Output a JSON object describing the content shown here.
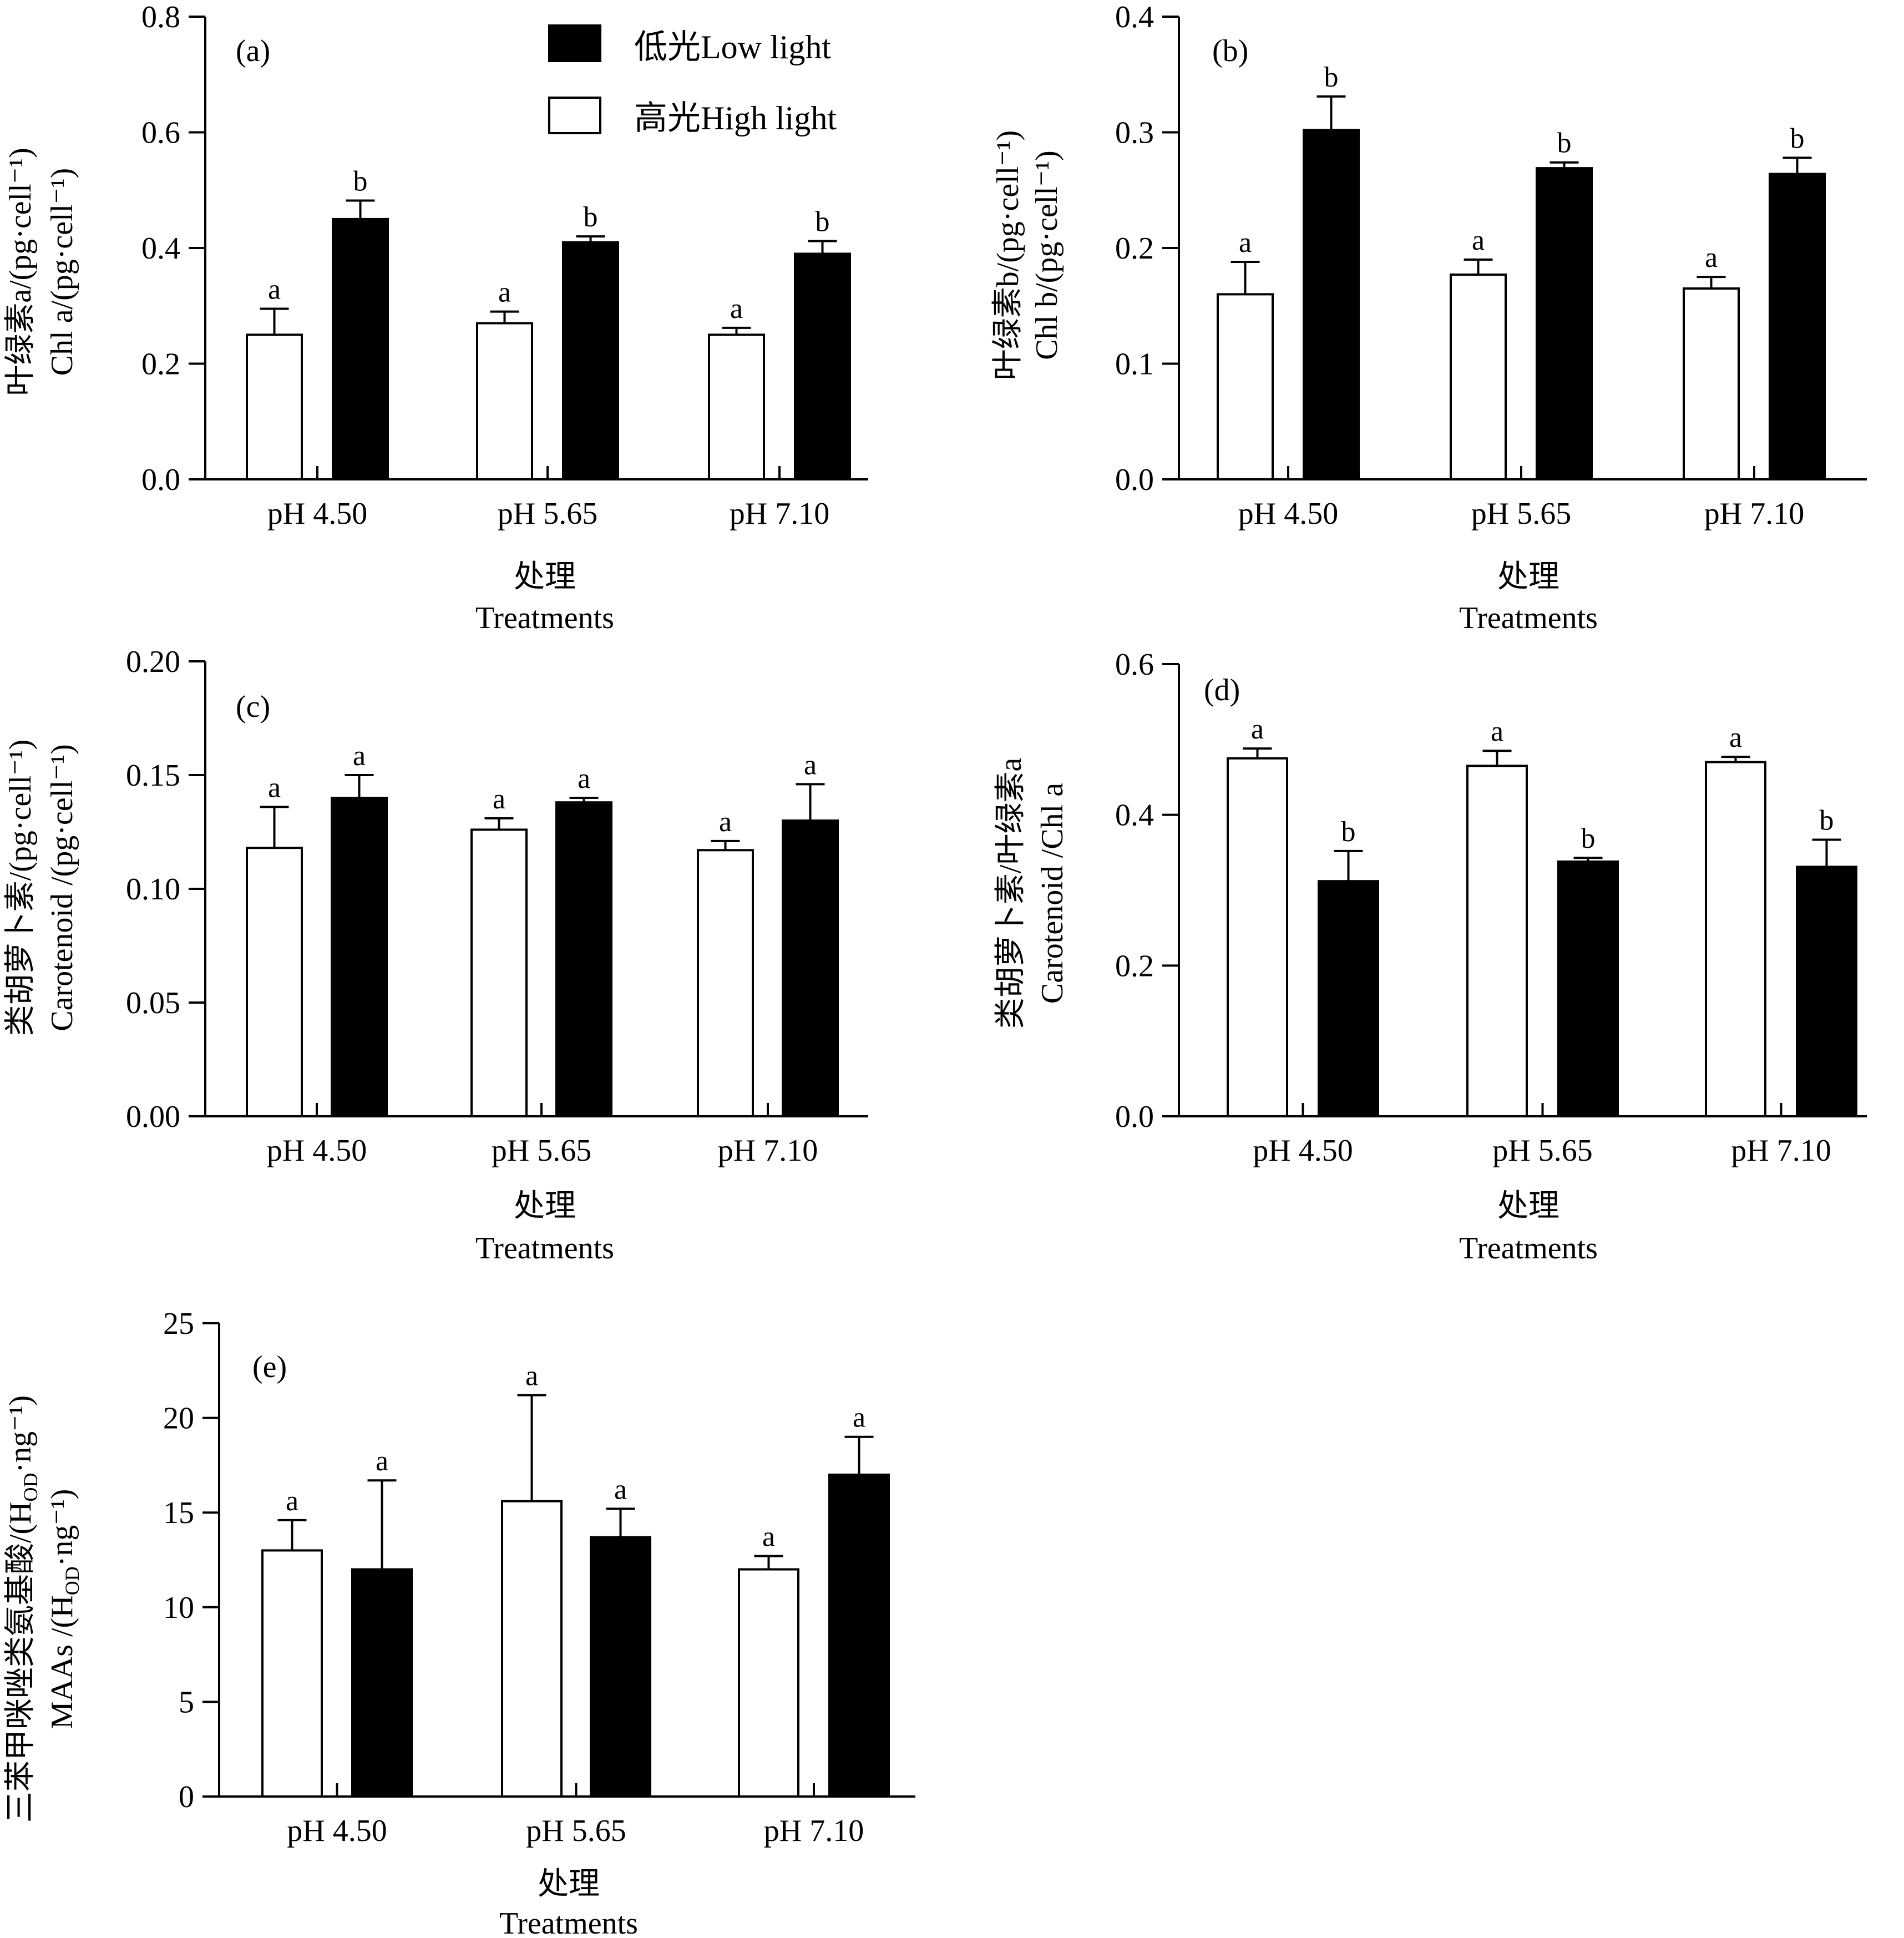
{
  "legend": {
    "low_label": "低光Low light",
    "high_label": "高光High light"
  },
  "colors": {
    "low_light_fill": "#000000",
    "high_light_fill": "#ffffff",
    "stroke": "#000000"
  },
  "chart_data": [
    {
      "type": "bar",
      "panel": "(a)",
      "ylabel_cn": "叶绿素a/(pg·cell⁻¹)",
      "ylabel_en": "Chl a/(pg·cell⁻¹)",
      "xlabel_cn": "处理",
      "xlabel_en": "Treatments",
      "categories": [
        "pH 4.50",
        "pH 5.65",
        "pH 7.10"
      ],
      "ylim": [
        0,
        0.8
      ],
      "yticks": [
        "0.0",
        "0.2",
        "0.4",
        "0.6",
        "0.8"
      ],
      "series": [
        {
          "name": "高光High light",
          "values": [
            0.25,
            0.27,
            0.25
          ],
          "errors": [
            0.045,
            0.02,
            0.012
          ],
          "labels": [
            "a",
            "a",
            "a"
          ]
        },
        {
          "name": "低光Low light",
          "values": [
            0.45,
            0.41,
            0.39
          ],
          "errors": [
            0.032,
            0.01,
            0.022
          ],
          "labels": [
            "b",
            "b",
            "b"
          ]
        }
      ]
    },
    {
      "type": "bar",
      "panel": "(b)",
      "ylabel_cn": "叶绿素b/(pg·cell⁻¹)",
      "ylabel_en": "Chl b/(pg·cell⁻¹)",
      "xlabel_cn": "处理",
      "xlabel_en": "Treatments",
      "categories": [
        "pH 4.50",
        "pH 5.65",
        "pH 7.10"
      ],
      "ylim": [
        0,
        0.4
      ],
      "yticks": [
        "0.0",
        "0.1",
        "0.2",
        "0.3",
        "0.4"
      ],
      "series": [
        {
          "name": "高光High light",
          "values": [
            0.16,
            0.177,
            0.165
          ],
          "errors": [
            0.028,
            0.013,
            0.01
          ],
          "labels": [
            "a",
            "a",
            "a"
          ]
        },
        {
          "name": "低光Low light",
          "values": [
            0.302,
            0.269,
            0.264
          ],
          "errors": [
            0.029,
            0.005,
            0.014
          ],
          "labels": [
            "b",
            "b",
            "b"
          ]
        }
      ]
    },
    {
      "type": "bar",
      "panel": "(c)",
      "ylabel_cn": "类胡萝卜素/(pg·cell⁻¹)",
      "ylabel_en": "Carotenoid /(pg·cell⁻¹)",
      "xlabel_cn": "处理",
      "xlabel_en": "Treatments",
      "categories": [
        "pH 4.50",
        "pH 5.65",
        "pH 7.10"
      ],
      "ylim": [
        0,
        0.2
      ],
      "yticks": [
        "0.00",
        "0.05",
        "0.10",
        "0.15",
        "0.20"
      ],
      "series": [
        {
          "name": "高光High light",
          "values": [
            0.118,
            0.126,
            0.117
          ],
          "errors": [
            0.018,
            0.005,
            0.004
          ],
          "labels": [
            "a",
            "a",
            "a"
          ]
        },
        {
          "name": "低光Low light",
          "values": [
            0.14,
            0.138,
            0.13
          ],
          "errors": [
            0.01,
            0.002,
            0.016
          ],
          "labels": [
            "a",
            "a",
            "a"
          ]
        }
      ]
    },
    {
      "type": "bar",
      "panel": "(d)",
      "ylabel_cn": "类胡萝卜素/叶绿素a",
      "ylabel_en": "Carotenoid /Chl a",
      "xlabel_cn": "处理",
      "xlabel_en": "Treatments",
      "categories": [
        "pH 4.50",
        "pH 5.65",
        "pH 7.10"
      ],
      "ylim": [
        0,
        0.6
      ],
      "yticks": [
        "0.0",
        "0.2",
        "0.4",
        "0.6"
      ],
      "series": [
        {
          "name": "高光High light",
          "values": [
            0.475,
            0.465,
            0.47
          ],
          "errors": [
            0.013,
            0.02,
            0.007
          ],
          "labels": [
            "a",
            "a",
            "a"
          ]
        },
        {
          "name": "低光Low light",
          "values": [
            0.312,
            0.338,
            0.331
          ],
          "errors": [
            0.04,
            0.005,
            0.036
          ],
          "labels": [
            "b",
            "b",
            "b"
          ]
        }
      ]
    },
    {
      "type": "bar",
      "panel": "(e)",
      "ylabel_cn": "三苯甲咪唑类氨基酸/(H",
      "ylabel_en": "MAAs /(H",
      "ylabel_sub": "OD",
      "ylabel_tail": "·ng⁻¹)",
      "xlabel_cn": "处理",
      "xlabel_en": "Treatments",
      "categories": [
        "pH 4.50",
        "pH 5.65",
        "pH 7.10"
      ],
      "ylim": [
        0,
        25
      ],
      "yticks": [
        "0",
        "5",
        "10",
        "15",
        "20",
        "25"
      ],
      "series": [
        {
          "name": "高光High light",
          "values": [
            13.0,
            15.6,
            12.0
          ],
          "errors": [
            1.6,
            5.6,
            0.7
          ],
          "labels": [
            "a",
            "a",
            "a"
          ]
        },
        {
          "name": "低光Low light",
          "values": [
            12.0,
            13.7,
            17.0
          ],
          "errors": [
            4.7,
            1.5,
            2.0
          ],
          "labels": [
            "a",
            "a",
            "a"
          ]
        }
      ]
    }
  ]
}
